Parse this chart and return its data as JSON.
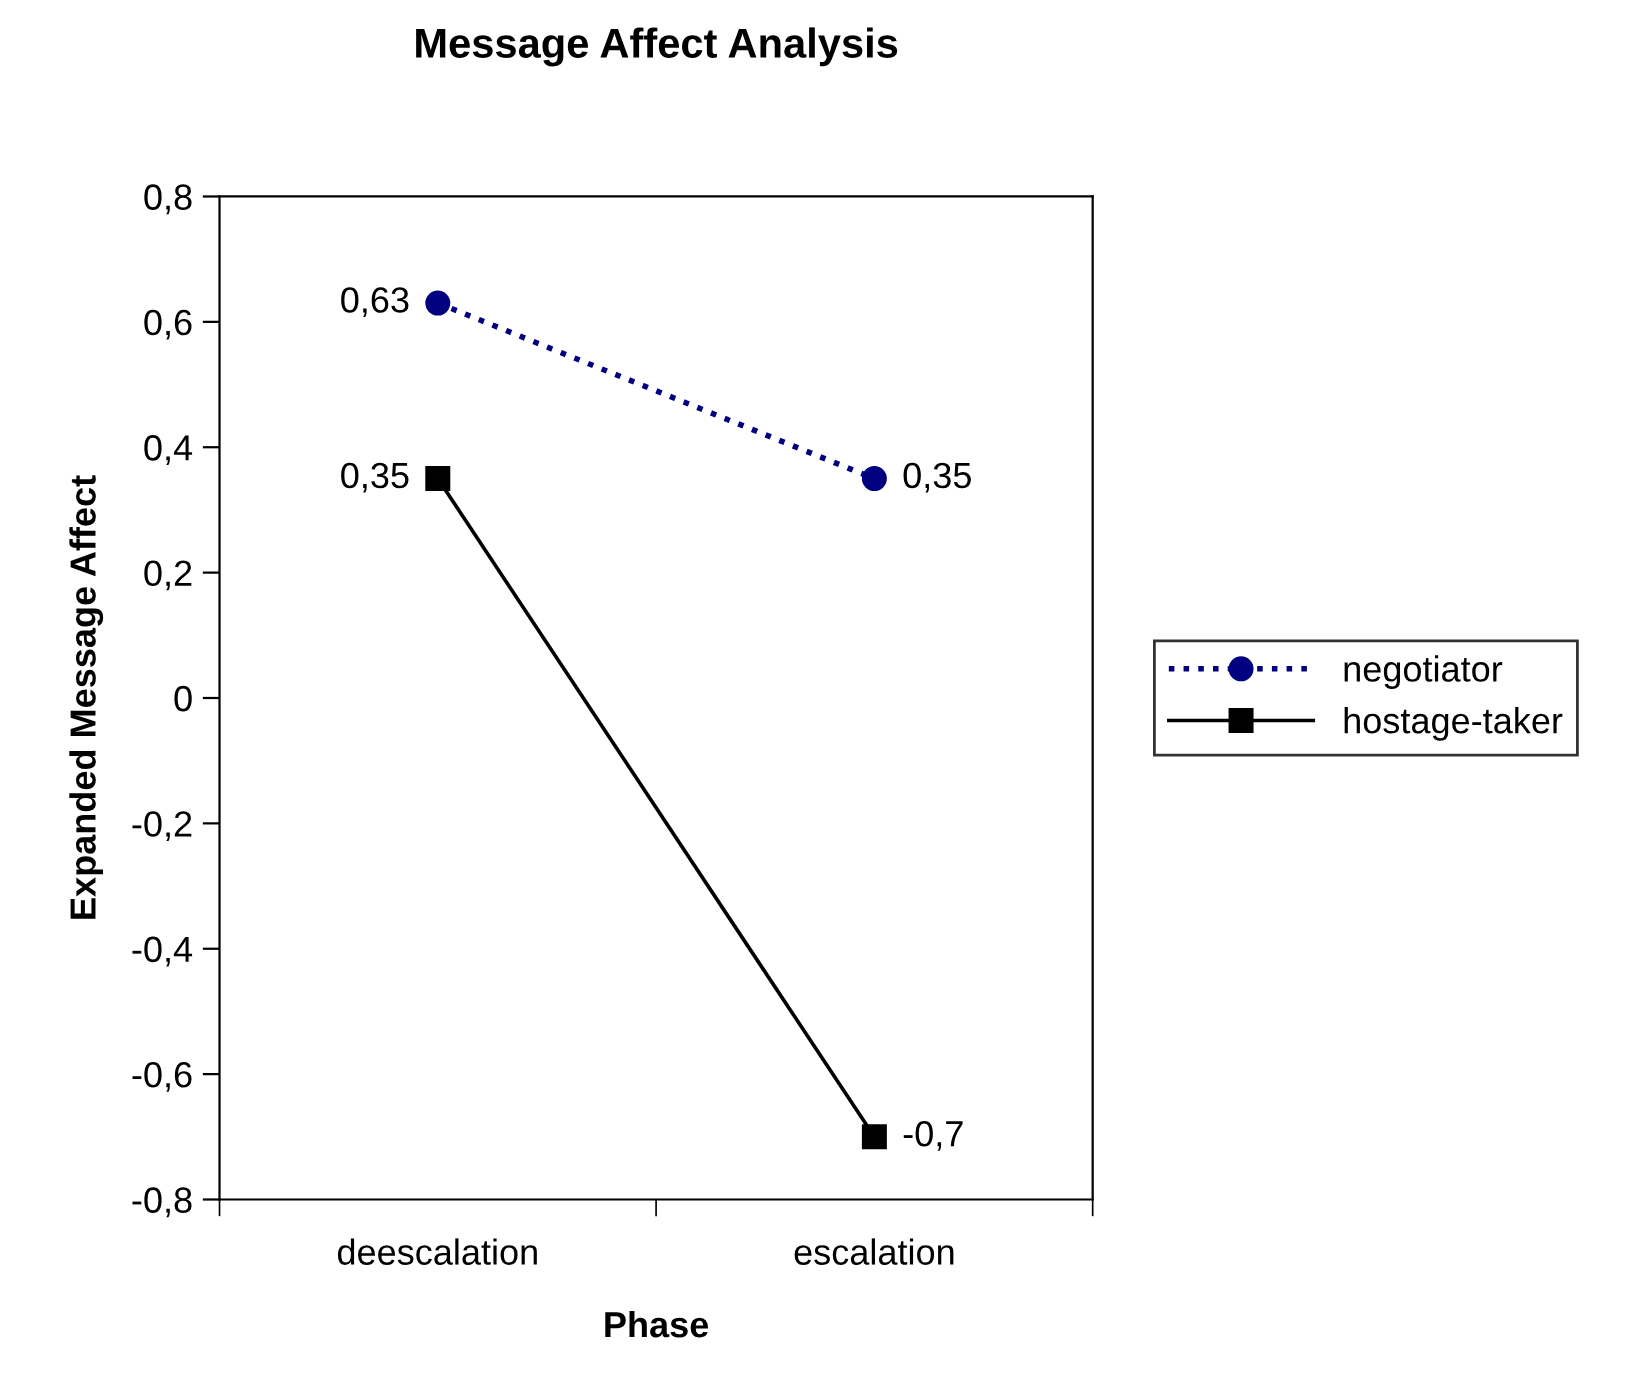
{
  "chart_data": {
    "type": "line",
    "title": "Message Affect Analysis",
    "xlabel": "Phase",
    "ylabel": "Expanded Message Affect",
    "categories": [
      "deescalation",
      "escalation"
    ],
    "series": [
      {
        "name": "negotiator",
        "color": "#000080",
        "values": [
          0.63,
          0.35
        ],
        "value_labels": [
          "0,63",
          "0,35"
        ],
        "marker": "circle",
        "line_style": "dotted"
      },
      {
        "name": "hostage-taker",
        "color": "#000000",
        "values": [
          0.35,
          -0.7
        ],
        "value_labels": [
          "0,35",
          "-0,7"
        ],
        "marker": "square",
        "line_style": "solid"
      }
    ],
    "ylim": [
      -0.8,
      0.8
    ],
    "yticks": [
      {
        "value": -0.8,
        "label": "-0,8"
      },
      {
        "value": -0.6,
        "label": "-0,6"
      },
      {
        "value": -0.4,
        "label": "-0,4"
      },
      {
        "value": -0.2,
        "label": "-0,2"
      },
      0,
      {
        "value": 0.2,
        "label": "0,2"
      },
      {
        "value": 0.4,
        "label": "0,4"
      },
      {
        "value": 0.6,
        "label": "0,6"
      },
      {
        "value": 0.8,
        "label": "0,8"
      }
    ],
    "grid": false,
    "legend": "right"
  }
}
